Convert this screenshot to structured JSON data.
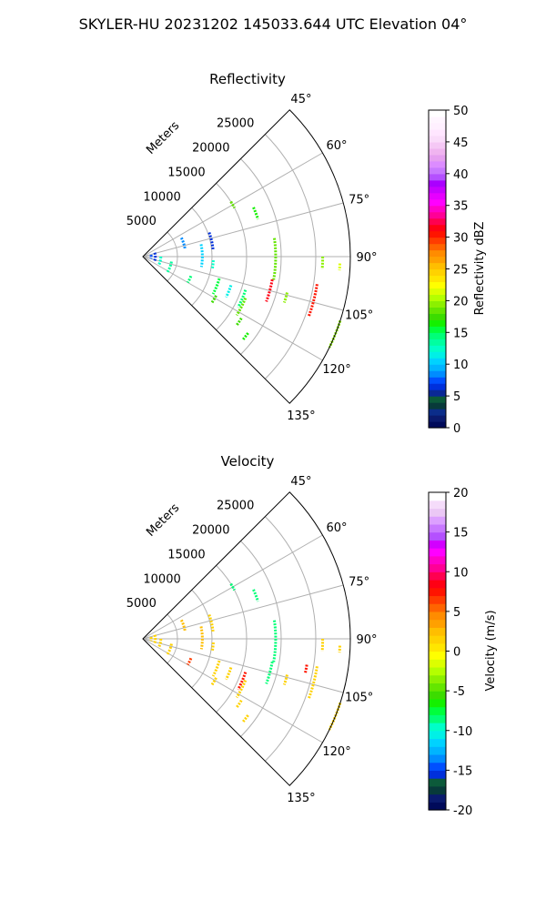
{
  "suptitle": "SKYLER-HU  20231202  145033.644 UTC Elevation 04°",
  "chart_data": [
    {
      "type": "scatter",
      "projection": "polar-sector",
      "title": "Reflectivity",
      "radial_label": "Meters",
      "radial_ticks": [
        "5000",
        "10000",
        "15000",
        "20000",
        "25000"
      ],
      "radial_tick_values": [
        5000,
        10000,
        15000,
        20000,
        25000
      ],
      "rlim": [
        0,
        30000
      ],
      "angle_ticks": [
        "45°",
        "60°",
        "75°",
        "90°",
        "105°",
        "120°",
        "135°"
      ],
      "angle_tick_values": [
        45,
        60,
        75,
        90,
        105,
        120,
        135
      ],
      "theta_range": [
        45,
        135
      ],
      "grid": true,
      "colorbar": {
        "label": "Reflectivity dBZ",
        "ticks": [
          "0",
          "5",
          "10",
          "15",
          "20",
          "25",
          "30",
          "35",
          "40",
          "45",
          "50"
        ],
        "range": [
          0,
          50
        ],
        "colors": [
          "#000a5a",
          "#0a1a6e",
          "#0b2d8a",
          "#083a3a",
          "#0c5a3a",
          "#0a2896",
          "#0030dc",
          "#0050ff",
          "#008cff",
          "#00b4ff",
          "#00d2ff",
          "#00f0e6",
          "#00ffc8",
          "#00ffa0",
          "#00ff78",
          "#00ff3c",
          "#14f000",
          "#3cdc00",
          "#64e600",
          "#8cf000",
          "#b4ff00",
          "#dcff00",
          "#ffff00",
          "#ffe600",
          "#ffd200",
          "#ffbe00",
          "#ffa000",
          "#ff8c00",
          "#ff6400",
          "#ff3c00",
          "#ff1400",
          "#ff0014",
          "#ff0050",
          "#ff0096",
          "#ff00c8",
          "#ff00ff",
          "#e600ff",
          "#c800ff",
          "#aa00ff",
          "#b450ff",
          "#c878ff",
          "#dc8cff",
          "#e6a0f0",
          "#f0b4f0",
          "#f5c8f5",
          "#fadcfa",
          "#ffe6ff",
          "#fff0ff",
          "#fff5ff",
          "#ffffff"
        ]
      },
      "arcs": [
        {
          "r": 1200,
          "t0": 78,
          "t1": 104,
          "value": 7
        },
        {
          "r": 1800,
          "t0": 72,
          "t1": 112,
          "value": 6
        },
        {
          "r": 2600,
          "t0": 90,
          "t1": 118,
          "value": 12
        },
        {
          "r": 4200,
          "t0": 100,
          "t1": 124,
          "value": 13
        },
        {
          "r": 6200,
          "t0": 64,
          "t1": 80,
          "value": 8
        },
        {
          "r": 7500,
          "t0": 112,
          "t1": 120,
          "value": 14
        },
        {
          "r": 8600,
          "t0": 78,
          "t1": 100,
          "value": 10
        },
        {
          "r": 10200,
          "t0": 70,
          "t1": 84,
          "value": 6
        },
        {
          "r": 10200,
          "t0": 93,
          "t1": 100,
          "value": 12
        },
        {
          "r": 11500,
          "t0": 106,
          "t1": 118,
          "value": 15
        },
        {
          "r": 12000,
          "t0": 118,
          "t1": 124,
          "value": 17
        },
        {
          "r": 13400,
          "t0": 108,
          "t1": 116,
          "value": 11
        },
        {
          "r": 15000,
          "t0": 58,
          "t1": 62,
          "value": 18
        },
        {
          "r": 15600,
          "t0": 108,
          "t1": 118,
          "value": 14
        },
        {
          "r": 16000,
          "t0": 112,
          "t1": 122,
          "value": 18
        },
        {
          "r": 16800,
          "t0": 122,
          "t1": 126,
          "value": 17
        },
        {
          "r": 17500,
          "t0": 66,
          "t1": 72,
          "value": 16
        },
        {
          "r": 18800,
          "t0": 126,
          "t1": 130,
          "value": 16
        },
        {
          "r": 19200,
          "t0": 82,
          "t1": 100,
          "value": 18
        },
        {
          "r": 19000,
          "t0": 100,
          "t1": 110,
          "value": 31
        },
        {
          "r": 21500,
          "t0": 104,
          "t1": 108,
          "value": 19
        },
        {
          "r": 25500,
          "t0": 99,
          "t1": 110,
          "value": 30
        },
        {
          "r": 26000,
          "t0": 90,
          "t1": 94,
          "value": 19
        },
        {
          "r": 28500,
          "t0": 92,
          "t1": 94,
          "value": 21
        },
        {
          "r": 30000,
          "t0": 108,
          "t1": 116,
          "value": 19
        }
      ]
    },
    {
      "type": "scatter",
      "projection": "polar-sector",
      "title": "Velocity",
      "radial_label": "Meters",
      "radial_ticks": [
        "5000",
        "10000",
        "15000",
        "20000",
        "25000"
      ],
      "radial_tick_values": [
        5000,
        10000,
        15000,
        20000,
        25000
      ],
      "rlim": [
        0,
        30000
      ],
      "angle_ticks": [
        "45°",
        "60°",
        "75°",
        "90°",
        "105°",
        "120°",
        "135°"
      ],
      "angle_tick_values": [
        45,
        60,
        75,
        90,
        105,
        120,
        135
      ],
      "theta_range": [
        45,
        135
      ],
      "grid": true,
      "colorbar": {
        "label": "Velocity (m/s)",
        "ticks": [
          "-20",
          "-15",
          "-10",
          "-5",
          "0",
          "5",
          "10",
          "15",
          "20"
        ],
        "range": [
          -20,
          20
        ],
        "colors": [
          "#000a5a",
          "#0a1a6e",
          "#083a3a",
          "#0c5a3a",
          "#0030dc",
          "#0050ff",
          "#008cff",
          "#00b4ff",
          "#00d2ff",
          "#00f0e6",
          "#00ffc8",
          "#00ff78",
          "#00ff3c",
          "#14f000",
          "#3cdc00",
          "#64e600",
          "#8cf000",
          "#b4ff00",
          "#dcff00",
          "#ffff00",
          "#ffe600",
          "#ffd200",
          "#ffbe00",
          "#ffa000",
          "#ff8c00",
          "#ff6400",
          "#ff3c00",
          "#ff1400",
          "#ff0014",
          "#ff0050",
          "#ff0096",
          "#ff00c8",
          "#ff00ff",
          "#d200ff",
          "#b450ff",
          "#c878ff",
          "#dca0ff",
          "#ebc8f5",
          "#f5dcfa",
          "#ffffff"
        ]
      },
      "arcs": [
        {
          "r": 1200,
          "t0": 78,
          "t1": 104,
          "value": 1
        },
        {
          "r": 1800,
          "t0": 72,
          "t1": 112,
          "value": 1
        },
        {
          "r": 2600,
          "t0": 90,
          "t1": 118,
          "value": 1
        },
        {
          "r": 4200,
          "t0": 100,
          "t1": 124,
          "value": 1
        },
        {
          "r": 6200,
          "t0": 64,
          "t1": 80,
          "value": 2
        },
        {
          "r": 7500,
          "t0": 112,
          "t1": 120,
          "value": 6
        },
        {
          "r": 8600,
          "t0": 78,
          "t1": 100,
          "value": 2
        },
        {
          "r": 10200,
          "t0": 70,
          "t1": 84,
          "value": 1
        },
        {
          "r": 10200,
          "t0": 93,
          "t1": 100,
          "value": 1
        },
        {
          "r": 11500,
          "t0": 106,
          "t1": 118,
          "value": 1
        },
        {
          "r": 12000,
          "t0": 118,
          "t1": 124,
          "value": 1
        },
        {
          "r": 13400,
          "t0": 108,
          "t1": 116,
          "value": 1
        },
        {
          "r": 15000,
          "t0": 58,
          "t1": 62,
          "value": -9
        },
        {
          "r": 15600,
          "t0": 108,
          "t1": 118,
          "value": 7
        },
        {
          "r": 16000,
          "t0": 112,
          "t1": 122,
          "value": 1
        },
        {
          "r": 16800,
          "t0": 122,
          "t1": 126,
          "value": 1
        },
        {
          "r": 17500,
          "t0": 66,
          "t1": 72,
          "value": -9
        },
        {
          "r": 18800,
          "t0": 126,
          "t1": 130,
          "value": 1
        },
        {
          "r": 19200,
          "t0": 82,
          "t1": 100,
          "value": -9
        },
        {
          "r": 19000,
          "t0": 100,
          "t1": 110,
          "value": -9
        },
        {
          "r": 21500,
          "t0": 104,
          "t1": 108,
          "value": 1
        },
        {
          "r": 25500,
          "t0": 99,
          "t1": 110,
          "value": 1
        },
        {
          "r": 24000,
          "t0": 99,
          "t1": 102,
          "value": 7
        },
        {
          "r": 26000,
          "t0": 90,
          "t1": 94,
          "value": 1
        },
        {
          "r": 28500,
          "t0": 92,
          "t1": 94,
          "value": 1
        },
        {
          "r": 30000,
          "t0": 108,
          "t1": 116,
          "value": 1
        }
      ]
    }
  ]
}
